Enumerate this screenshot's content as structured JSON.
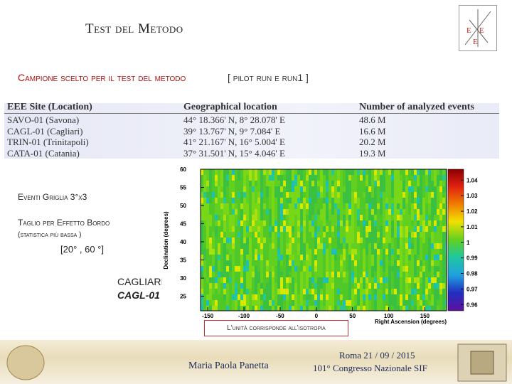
{
  "header": {
    "title": "Test del Metodo"
  },
  "subtitle": {
    "text": "Campione scelto per il test del metodo",
    "note": "[ pilot run e run1 ]"
  },
  "table": {
    "columns": [
      "EEE Site (Location)",
      "Geographical location",
      "Number of analyzed events"
    ],
    "rows": [
      [
        "SAVO-01 (Savona)",
        "44° 18.366' N, 8° 28.078' E",
        "48.6 M"
      ],
      [
        "CAGL-01 (Cagliari)",
        "39° 13.767' N, 9° 7.084' E",
        "16.6 M"
      ],
      [
        "TRIN-01 (Trinitapoli)",
        "41° 21.167' N, 16° 5.004' E",
        "20.2 M"
      ],
      [
        "CATA-01 (Catania)",
        "37° 31.501' N, 15° 4.046' E",
        "19.3 M"
      ]
    ]
  },
  "notes": [
    "Eventi Griglia 3°x3",
    "Taglio per Effetto Bordo",
    "(statistica più bassa )",
    "[20° , 60 °]"
  ],
  "site": {
    "name": "CAGLIARI",
    "code": "CAGL-01"
  },
  "plot": {
    "y_label": "Declination (degrees)",
    "x_label": "Right Ascension (degrees)",
    "xlim": [
      -160,
      180
    ],
    "ylim": [
      21,
      60
    ],
    "xticks": [
      -150,
      -100,
      -50,
      0,
      50,
      100,
      150
    ],
    "yticks": [
      25,
      30,
      35,
      40,
      45,
      50,
      55,
      60
    ],
    "colorbar_lim": [
      0.956,
      1.047
    ],
    "colorbar_ticks": [
      0.96,
      0.97,
      0.98,
      0.99,
      1,
      1.01,
      1.02,
      1.03,
      1.04
    ]
  },
  "annotation": "L'unità corrisponde all'isotropia",
  "footer": {
    "author": "Maria Paola Panetta",
    "date": "Roma 21 / 09 / 2015",
    "event": "101° Congresso Nazionale SIF"
  }
}
